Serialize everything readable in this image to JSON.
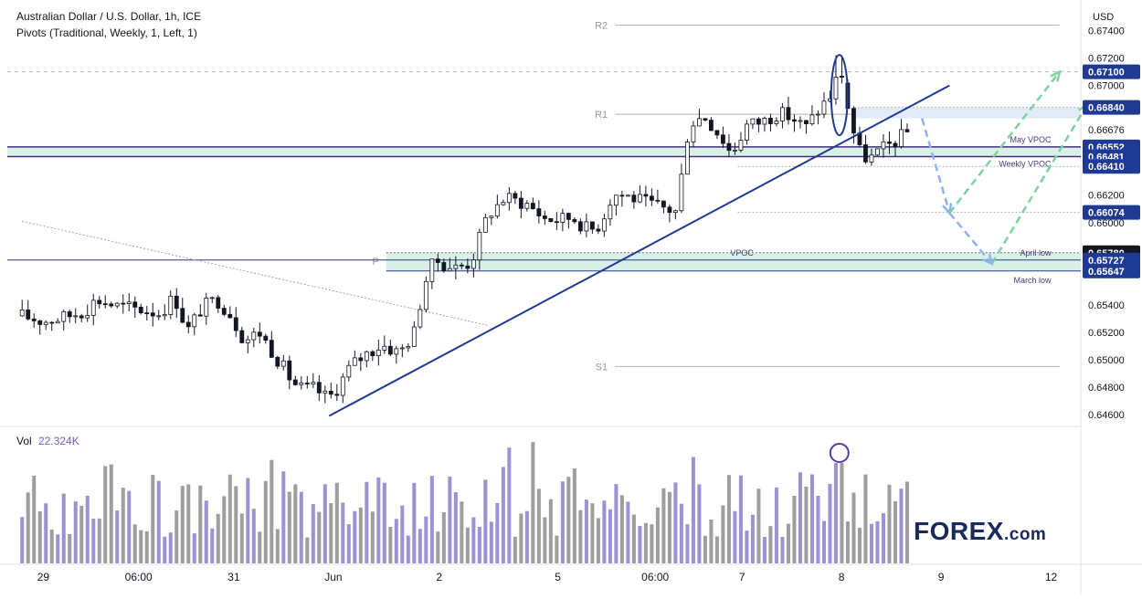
{
  "header": {
    "title": "Australian Dollar / U.S. Dollar, 1h, ICE",
    "indicator": "Pivots (Traditional, Weekly, 1, Left, 1)"
  },
  "axis": {
    "currency": "USD",
    "price_ticks": [
      "0.67400",
      "0.67200",
      "0.67000",
      "0.66676",
      "0.66200",
      "0.66000",
      "0.65400",
      "0.65200",
      "0.65000",
      "0.64800",
      "0.64600"
    ],
    "tick_values": [
      0.674,
      0.672,
      0.67,
      0.66676,
      0.662,
      0.66,
      0.654,
      0.652,
      0.65,
      0.648,
      0.646
    ],
    "time_labels": [
      {
        "label": "29",
        "x": 0.1
      },
      {
        "label": "06:00",
        "x": 0.55
      },
      {
        "label": "31",
        "x": 1.0
      },
      {
        "label": "Jun",
        "x": 1.47
      },
      {
        "label": "2",
        "x": 1.97
      },
      {
        "label": "5",
        "x": 2.53
      },
      {
        "label": "06:00",
        "x": 2.99
      },
      {
        "label": "7",
        "x": 3.4
      },
      {
        "label": "8",
        "x": 3.87
      },
      {
        "label": "9",
        "x": 4.34
      },
      {
        "label": "12",
        "x": 4.86
      }
    ]
  },
  "price_badges": [
    {
      "label": "0.67100",
      "value": 0.671,
      "color": "#1f3a93"
    },
    {
      "label": "0.66840",
      "value": 0.6684,
      "color": "#1f3a93"
    },
    {
      "label": "0.66552",
      "value": 0.66552,
      "color": "#1f3a93"
    },
    {
      "label": "0.66481",
      "value": 0.66481,
      "color": "#1f3a93"
    },
    {
      "label": "0.66410",
      "value": 0.6641,
      "color": "#1f3a93"
    },
    {
      "label": "0.66074",
      "value": 0.66074,
      "color": "#1f3a93"
    },
    {
      "label": "0.65780",
      "value": 0.6578,
      "color": "#131722"
    },
    {
      "label": "0.65727",
      "value": 0.65727,
      "color": "#1f3a93"
    },
    {
      "label": "0.65647",
      "value": 0.65647,
      "color": "#1f3a93"
    }
  ],
  "pivots": [
    {
      "label": "R2",
      "value": 0.6744
    },
    {
      "label": "R1",
      "value": 0.6679
    },
    {
      "label": "P",
      "value": 0.6572
    },
    {
      "label": "S1",
      "value": 0.6495
    }
  ],
  "level_labels": {
    "may_vpoc": "May VPOC",
    "weekly_vpoc": "Weekly VPOC",
    "april_low": "April low",
    "march_low": "March low",
    "vpoc": "VPOC"
  },
  "volume": {
    "label": "Vol",
    "value": "22.324K"
  },
  "logo": {
    "text_a": "F",
    "text_o": "O",
    "text_b": "REX",
    "text_c": ".com"
  },
  "colors": {
    "bull": "#ffffff",
    "bear": "#131722",
    "trendline": "#1f3a93",
    "ellipse": "#1f3a93",
    "volume_up": "#9e91d4",
    "volume_down": "#9e9e9e",
    "projection_down": "#8fb3ee",
    "projection_up": "#7fd1a0",
    "zone_fill": "#d8f1e6"
  },
  "chart_data": {
    "type": "candlestick",
    "title": "Australian Dollar / U.S. Dollar, 1h, ICE",
    "ylabel": "USD",
    "ylim": [
      0.6452,
      0.6759
    ],
    "x_unit": "days from May 29",
    "xlim": [
      -0.07,
      5.0
    ],
    "close_path": [
      [
        0.0,
        0.6532
      ],
      [
        0.1,
        0.6528
      ],
      [
        0.2,
        0.6531
      ],
      [
        0.3,
        0.6536
      ],
      [
        0.35,
        0.6544
      ],
      [
        0.45,
        0.6539
      ],
      [
        0.55,
        0.6537
      ],
      [
        0.65,
        0.6534
      ],
      [
        0.72,
        0.6546
      ],
      [
        0.78,
        0.6521
      ],
      [
        0.85,
        0.6538
      ],
      [
        0.92,
        0.6544
      ],
      [
        0.98,
        0.6534
      ],
      [
        1.05,
        0.6514
      ],
      [
        1.12,
        0.652
      ],
      [
        1.2,
        0.6502
      ],
      [
        1.28,
        0.6483
      ],
      [
        1.33,
        0.6478
      ],
      [
        1.38,
        0.6479
      ],
      [
        1.44,
        0.6472
      ],
      [
        1.47,
        0.6475
      ],
      [
        1.55,
        0.6495
      ],
      [
        1.62,
        0.6504
      ],
      [
        1.7,
        0.6511
      ],
      [
        1.78,
        0.6505
      ],
      [
        1.85,
        0.6519
      ],
      [
        1.9,
        0.6556
      ],
      [
        1.95,
        0.6573
      ],
      [
        2.0,
        0.6569
      ],
      [
        2.05,
        0.6567
      ],
      [
        2.12,
        0.6571
      ],
      [
        2.2,
        0.6606
      ],
      [
        2.28,
        0.6618
      ],
      [
        2.38,
        0.6614
      ],
      [
        2.47,
        0.6603
      ],
      [
        2.53,
        0.6602
      ],
      [
        2.6,
        0.6604
      ],
      [
        2.68,
        0.6594
      ],
      [
        2.73,
        0.6599
      ],
      [
        2.79,
        0.6621
      ],
      [
        2.87,
        0.6619
      ],
      [
        2.95,
        0.6614
      ],
      [
        3.02,
        0.6611
      ],
      [
        3.09,
        0.6608
      ],
      [
        3.15,
        0.6672
      ],
      [
        3.22,
        0.6678
      ],
      [
        3.3,
        0.6663
      ],
      [
        3.35,
        0.665
      ],
      [
        3.42,
        0.6671
      ],
      [
        3.5,
        0.6674
      ],
      [
        3.57,
        0.668
      ],
      [
        3.63,
        0.6677
      ],
      [
        3.7,
        0.6669
      ],
      [
        3.76,
        0.6682
      ],
      [
        3.82,
        0.6693
      ],
      [
        3.86,
        0.6712
      ],
      [
        3.9,
        0.6684
      ],
      [
        3.93,
        0.6664
      ],
      [
        3.96,
        0.665
      ],
      [
        4.0,
        0.6646
      ],
      [
        4.06,
        0.6653
      ],
      [
        4.12,
        0.6659
      ],
      [
        4.18,
        0.6666
      ]
    ],
    "volume_series": "hourly volume bars, peak at Jun 8 spike"
  }
}
